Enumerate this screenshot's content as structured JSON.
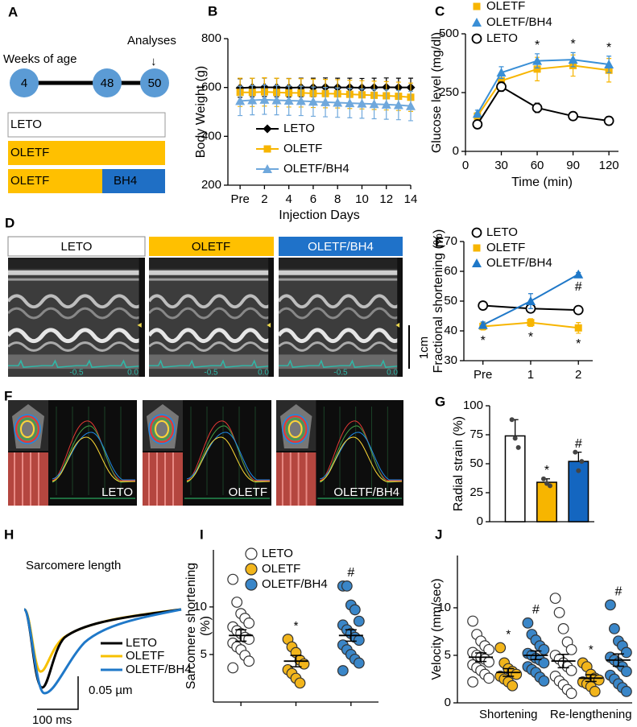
{
  "diagram_a": {
    "label": "A",
    "weeks_label": "Weeks of age",
    "analyses_label": "Analyses",
    "arrow": "↓",
    "nodes": [
      "4",
      "48",
      "50"
    ],
    "groups": [
      [
        "LETO"
      ],
      [
        "OLETF"
      ],
      [
        "OLETF",
        "BH4"
      ]
    ]
  },
  "images_d": {
    "label": "D",
    "titles": [
      "LETO",
      "OLETF",
      "OLETF/BH4"
    ],
    "time_labels": [
      "-0.5",
      "0.0"
    ],
    "scale": "1cm"
  },
  "images_f": {
    "label": "F",
    "titles": [
      "LETO",
      "OLETF",
      "OLETF/BH4"
    ]
  },
  "traces_h": {
    "label": "H",
    "title": "Sarcomere length",
    "legend": [
      "LETO",
      "OLETF",
      "OLETF/BH4"
    ],
    "scale_y": "0.05 µm",
    "scale_x": "100 ms"
  },
  "chart_data": [
    {
      "label": "B",
      "type": "line",
      "ylabel": "Body Weight (g)",
      "xlabel": "Injection Days",
      "x": [
        0,
        1,
        2,
        3,
        4,
        5,
        6,
        7,
        8,
        9,
        10,
        11,
        12,
        13,
        14
      ],
      "xlim": [
        -1,
        14
      ],
      "xticks": [
        {
          "value": 0,
          "label": "Pre"
        },
        2,
        4,
        6,
        8,
        10,
        12,
        14
      ],
      "ylim": [
        200,
        800
      ],
      "yticks": [
        200,
        400,
        600,
        800
      ],
      "legend": "lower left",
      "series": [
        {
          "name": "LETO",
          "color": "#000000",
          "marker": "diamond",
          "values": [
            598,
            600,
            601,
            600,
            599,
            600,
            600,
            601,
            600,
            600,
            599,
            600,
            601,
            600,
            600
          ],
          "errors": [
            38,
            38,
            38,
            38,
            38,
            38,
            38,
            38,
            38,
            38,
            38,
            38,
            38,
            38,
            38
          ]
        },
        {
          "name": "OLETF",
          "color": "#f7b500",
          "marker": "square",
          "values": [
            580,
            580,
            582,
            580,
            578,
            578,
            576,
            575,
            574,
            572,
            570,
            568,
            566,
            564,
            560
          ],
          "errors": [
            58,
            58,
            58,
            58,
            58,
            58,
            58,
            58,
            58,
            58,
            58,
            58,
            58,
            58,
            58
          ]
        },
        {
          "name": "OLETF/BH4",
          "color": "#6fa8dc",
          "marker": "triangle",
          "values": [
            545,
            548,
            550,
            548,
            546,
            545,
            542,
            540,
            538,
            536,
            534,
            532,
            530,
            528,
            524
          ],
          "errors": [
            60,
            60,
            60,
            60,
            60,
            60,
            60,
            60,
            60,
            60,
            60,
            60,
            60,
            60,
            60
          ]
        }
      ]
    },
    {
      "label": "C",
      "type": "line",
      "ylabel": "Glucose level (mg/dl)",
      "xlabel": "Time (min)",
      "x": [
        10,
        30,
        60,
        90,
        120
      ],
      "xlim": [
        0,
        128
      ],
      "xticks": [
        0,
        30,
        60,
        90,
        120
      ],
      "ylim": [
        0,
        500
      ],
      "yticks": [
        0,
        250,
        500
      ],
      "legend": "top",
      "series": [
        {
          "name": "OLETF",
          "color": "#f7b500",
          "marker": "square",
          "values": [
            150,
            300,
            350,
            365,
            345
          ],
          "errors": [
            15,
            25,
            50,
            45,
            50
          ]
        },
        {
          "name": "OLETF/BH4",
          "color": "#3a8fd6",
          "marker": "triangle",
          "values": [
            160,
            335,
            385,
            390,
            370
          ],
          "errors": [
            15,
            25,
            30,
            30,
            35
          ],
          "annotations": [
            null,
            null,
            "*",
            "*",
            "*"
          ]
        },
        {
          "name": "LETO",
          "color": "#000000",
          "marker": "circle",
          "marker_fill": "#ffffff",
          "values": [
            115,
            275,
            185,
            150,
            130
          ],
          "errors": [
            18,
            20,
            20,
            18,
            18
          ]
        }
      ]
    },
    {
      "label": "E",
      "type": "line",
      "ylabel": "Fractional shortening (%)",
      "x": [
        0,
        1,
        2
      ],
      "xlim": [
        -0.4,
        2.3
      ],
      "xticks": [
        {
          "value": 0,
          "label": "Pre"
        },
        1,
        2
      ],
      "ylim": [
        30,
        70
      ],
      "yticks": [
        30,
        40,
        50,
        60,
        70
      ],
      "legend": "upper left",
      "series": [
        {
          "name": "LETO",
          "color": "#000000",
          "marker": "circle",
          "marker_fill": "#ffffff",
          "values": [
            48.5,
            47.5,
            47
          ],
          "errors": [
            1.2,
            1.2,
            1.2
          ]
        },
        {
          "name": "OLETF",
          "color": "#f7b500",
          "marker": "square",
          "values": [
            41.5,
            42.8,
            41
          ],
          "errors": [
            1.2,
            1.3,
            1.8
          ],
          "annotations": [
            "*",
            "*",
            "*"
          ]
        },
        {
          "name": "OLETF/BH4",
          "color": "#1f78c8",
          "marker": "triangle",
          "values": [
            42,
            50,
            59
          ],
          "errors": [
            1,
            2.5,
            0.6
          ],
          "annotations": [
            null,
            null,
            "#"
          ]
        }
      ]
    },
    {
      "label": "G",
      "type": "bar",
      "ylabel": "Radial strain (%)",
      "values": [
        74,
        34,
        52
      ],
      "errors": [
        14,
        3,
        8
      ],
      "colors": [
        "#ffffff",
        "#f7b500",
        "#1466c0"
      ],
      "points": [
        [
          88,
          72,
          64
        ],
        [
          37,
          33,
          31
        ],
        [
          60,
          44,
          52
        ]
      ],
      "annotations": [
        null,
        "*",
        "#"
      ],
      "ylim": [
        0,
        100
      ],
      "yticks": [
        0,
        25,
        50,
        75,
        100
      ]
    },
    {
      "label": "I",
      "type": "dot",
      "ylabel": [
        "Sarcomere shortening",
        "(%)"
      ],
      "ylim": [
        0,
        16
      ],
      "yticks": [
        5,
        10
      ],
      "legend": "top",
      "series": [
        {
          "name": "LETO",
          "color": "#ffffff",
          "values": [
            12.9,
            10.5,
            9.3,
            8.8,
            8.3,
            7.9,
            7.5,
            7.2,
            6.8,
            6.6,
            6.2,
            5.8,
            5.5,
            4.9,
            4.3,
            3.6
          ],
          "mean": 7.0,
          "sem": 0.6
        },
        {
          "name": "OLETF",
          "color": "#f2b51b",
          "values": [
            6.6,
            5.8,
            5.2,
            4.4,
            4.0,
            3.4,
            3.0,
            2.5,
            2.0
          ],
          "mean": 4.3,
          "sem": 0.6,
          "annotation": "*"
        },
        {
          "name": "OLETF/BH4",
          "color": "#3a86c8",
          "values": [
            12.2,
            12.2,
            10.2,
            9.7,
            8.5,
            8.1,
            7.6,
            7.2,
            6.8,
            6.5,
            6.0,
            5.5,
            5.0,
            4.5,
            4.1,
            3.3
          ],
          "mean": 7.0,
          "sem": 0.6,
          "annotation": "#"
        }
      ]
    },
    {
      "label": "J",
      "type": "dot",
      "ylabel": "Velocity (mm/sec)",
      "categories": [
        "Shortening",
        "Re-lengthening"
      ],
      "ylim": [
        0,
        15.5
      ],
      "yticks": [
        0,
        5,
        10
      ],
      "series": [
        {
          "name": "LETO",
          "color": "#ffffff",
          "values": [
            [
              8.6,
              7.2,
              6.5,
              6.0,
              5.6,
              5.3,
              5.0,
              4.8,
              4.6,
              4.3,
              4.0,
              3.7,
              3.4,
              3.0,
              2.6,
              2.2
            ],
            [
              11.0,
              9.5,
              7.8,
              6.4,
              5.6,
              5.0,
              4.6,
              4.2,
              3.8,
              3.4,
              2.8,
              2.3,
              1.9,
              1.4,
              1.0
            ]
          ],
          "mean": [
            4.8,
            4.4
          ],
          "sem": [
            0.45,
            0.7
          ]
        },
        {
          "name": "OLETF",
          "color": "#f2b51b",
          "values": [
            [
              5.8,
              4.2,
              3.6,
              3.3,
              3.0,
              2.8,
              2.5,
              2.2,
              1.8
            ],
            [
              4.2,
              3.8,
              3.0,
              2.6,
              2.4,
              2.2,
              2.0,
              1.7,
              1.2
            ]
          ],
          "mean": [
            3.2,
            2.6
          ],
          "sem": [
            0.4,
            0.35
          ],
          "annotations": [
            "*",
            "*"
          ]
        },
        {
          "name": "OLETF/BH4",
          "color": "#3a86c8",
          "values": [
            [
              8.4,
              7.2,
              6.6,
              6.0,
              5.6,
              5.2,
              5.0,
              4.7,
              4.5,
              4.2,
              3.8,
              3.5,
              3.2,
              2.7,
              2.3
            ],
            [
              10.3,
              7.8,
              6.5,
              6.0,
              5.3,
              4.8,
              4.5,
              4.2,
              3.8,
              3.3,
              2.9,
              2.5,
              2.0,
              1.6,
              1.2
            ]
          ],
          "mean": [
            5.0,
            4.5
          ],
          "sem": [
            0.45,
            0.65
          ],
          "annotations": [
            "#",
            "#"
          ]
        }
      ]
    }
  ]
}
